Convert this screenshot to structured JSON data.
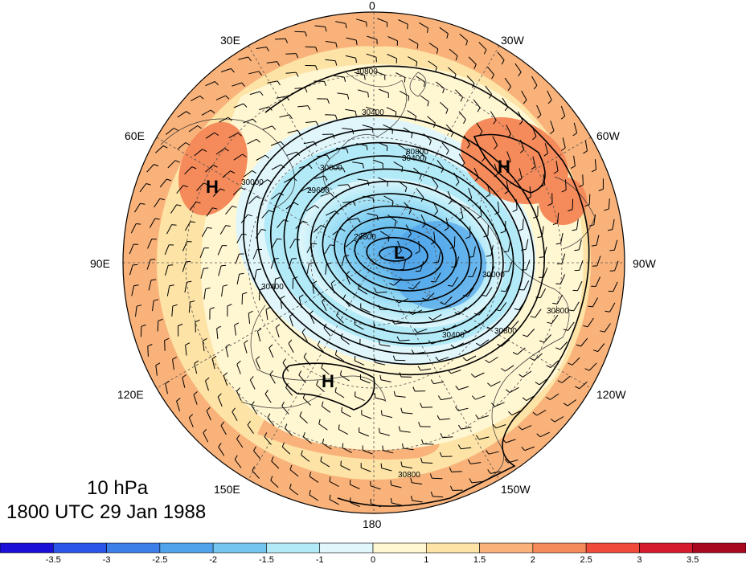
{
  "title": {
    "level": "10 hPa",
    "time": "1800 UTC 29 Jan 1988"
  },
  "lon_labels": [
    {
      "key": "lon-0",
      "text": "0"
    },
    {
      "key": "lon-30w",
      "text": "30W"
    },
    {
      "key": "lon-60w",
      "text": "60W"
    },
    {
      "key": "lon-90w",
      "text": "90W"
    },
    {
      "key": "lon-120w",
      "text": "120W"
    },
    {
      "key": "lon-150w",
      "text": "150W"
    },
    {
      "key": "lon-180",
      "text": "180"
    },
    {
      "key": "lon-150e",
      "text": "150E"
    },
    {
      "key": "lon-120e",
      "text": "120E"
    },
    {
      "key": "lon-90e",
      "text": "90E"
    },
    {
      "key": "lon-60e",
      "text": "60E"
    },
    {
      "key": "lon-30e",
      "text": "30E"
    }
  ],
  "pressure_centers": [
    {
      "key": "high-atlantic",
      "text": "H"
    },
    {
      "key": "high-siberia",
      "text": "H"
    },
    {
      "key": "high-pacific",
      "text": "H"
    },
    {
      "key": "low-polar",
      "text": "L"
    }
  ],
  "contour_labels": [
    "30800",
    "30400",
    "30000",
    "29600",
    "28800",
    "30000",
    "30400",
    "30800",
    "30800",
    "30400",
    "30800",
    "30000",
    "30400",
    "30800"
  ],
  "colorbar": {
    "ticks": [
      "-3.5",
      "-3",
      "-2.5",
      "-2",
      "-1.5",
      "-1",
      "0",
      "1",
      "1.5",
      "2",
      "2.5",
      "3",
      "3.5"
    ],
    "colors": [
      "#1a0fd6",
      "#2a55e8",
      "#3d7fe8",
      "#4fa3ea",
      "#74c6f0",
      "#b3eaf8",
      "#e0f6fb",
      "#fff6d2",
      "#fde3a6",
      "#f8b27a",
      "#f58a5a",
      "#ef4a3a",
      "#d51a2e",
      "#a8091f"
    ]
  }
}
